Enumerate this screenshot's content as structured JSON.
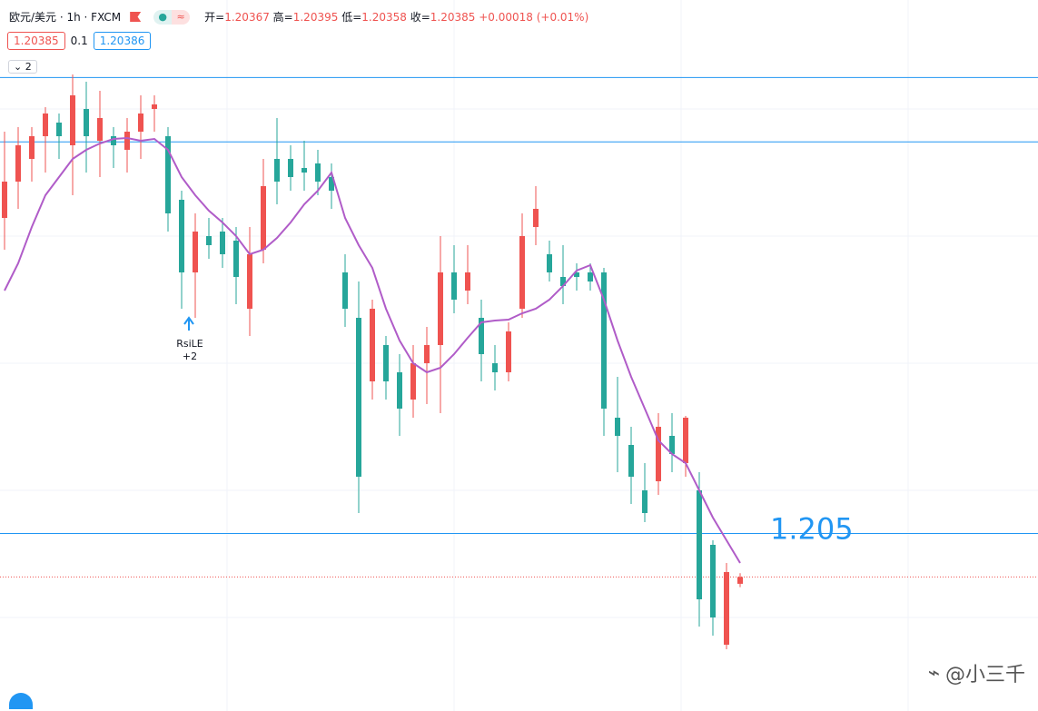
{
  "header": {
    "symbol": "欧元/美元 · 1h · FXCM",
    "ohlc": [
      {
        "label": "开=",
        "value": "1.20367"
      },
      {
        "label": "高=",
        "value": "1.20395"
      },
      {
        "label": "低=",
        "value": "1.20358"
      },
      {
        "label": "收=",
        "value": "1.20385"
      }
    ],
    "change": "+0.00018 (+0.01%)",
    "sell": "1.20385",
    "spread": "0.1",
    "buy": "1.20386",
    "panes": "2"
  },
  "chart_data": {
    "type": "candlestick",
    "ylim": [
      1.200308,
      1.2191
    ],
    "up_color": "#ef5350",
    "down_color": "#26a69a",
    "candles": [
      {
        "o": 1.21334,
        "h": 1.21562,
        "l": 1.2125,
        "c": 1.2143
      },
      {
        "o": 1.2143,
        "h": 1.21574,
        "l": 1.21358,
        "c": 1.21526
      },
      {
        "o": 1.2149,
        "h": 1.21574,
        "l": 1.2143,
        "c": 1.2155
      },
      {
        "o": 1.2155,
        "h": 1.216268,
        "l": 1.21454,
        "c": 1.2161
      },
      {
        "o": 1.21586,
        "h": 1.2161,
        "l": 1.2149,
        "c": 1.2155
      },
      {
        "o": 1.21526,
        "h": 1.217132,
        "l": 1.21394,
        "c": 1.21658
      },
      {
        "o": 1.21622,
        "h": 1.21694,
        "l": 1.21454,
        "c": 1.2155
      },
      {
        "o": 1.21538,
        "h": 1.2167,
        "l": 1.21442,
        "c": 1.21598
      },
      {
        "o": 1.2155,
        "h": 1.21574,
        "l": 1.21466,
        "c": 1.21526
      },
      {
        "o": 1.21514,
        "h": 1.21598,
        "l": 1.21454,
        "c": 1.21562
      },
      {
        "o": 1.21562,
        "h": 1.21658,
        "l": 1.2149,
        "c": 1.2161
      },
      {
        "o": 1.21622,
        "h": 1.21658,
        "l": 1.21562,
        "c": 1.21634
      },
      {
        "o": 1.2155,
        "h": 1.21574,
        "l": 1.21298,
        "c": 1.21346
      },
      {
        "o": 1.21382,
        "h": 1.21406,
        "l": 1.21094,
        "c": 1.2119
      },
      {
        "o": 1.2119,
        "h": 1.21346,
        "l": 1.2107,
        "c": 1.21298
      },
      {
        "o": 1.21286,
        "h": 1.21334,
        "l": 1.21226,
        "c": 1.21262
      },
      {
        "o": 1.21298,
        "h": 1.21334,
        "l": 1.21202,
        "c": 1.21238
      },
      {
        "o": 1.21274,
        "h": 1.2131,
        "l": 1.21106,
        "c": 1.21178
      },
      {
        "o": 1.21094,
        "h": 1.2131,
        "l": 1.21022,
        "c": 1.21238
      },
      {
        "o": 1.2125,
        "h": 1.2149,
        "l": 1.21214,
        "c": 1.21418
      },
      {
        "o": 1.2149,
        "h": 1.21598,
        "l": 1.2137,
        "c": 1.2143
      },
      {
        "o": 1.2149,
        "h": 1.21526,
        "l": 1.21406,
        "c": 1.21442
      },
      {
        "o": 1.21466,
        "h": 1.21538,
        "l": 1.21406,
        "c": 1.21454
      },
      {
        "o": 1.21478,
        "h": 1.21514,
        "l": 1.21394,
        "c": 1.2143
      },
      {
        "o": 1.21442,
        "h": 1.21478,
        "l": 1.21358,
        "c": 1.21406
      },
      {
        "o": 1.2119,
        "h": 1.21238,
        "l": 1.21046,
        "c": 1.21094
      },
      {
        "o": 1.2107,
        "h": 1.21166,
        "l": 1.20554,
        "c": 1.2065
      },
      {
        "o": 1.20902,
        "h": 1.21118,
        "l": 1.20854,
        "c": 1.21094
      },
      {
        "o": 1.20998,
        "h": 1.21022,
        "l": 1.20854,
        "c": 1.20902
      },
      {
        "o": 1.20926,
        "h": 1.20974,
        "l": 1.20758,
        "c": 1.2083
      },
      {
        "o": 1.20854,
        "h": 1.20998,
        "l": 1.20806,
        "c": 1.2095
      },
      {
        "o": 1.2095,
        "h": 1.21046,
        "l": 1.20842,
        "c": 1.20998
      },
      {
        "o": 1.20998,
        "h": 1.21286,
        "l": 1.20818,
        "c": 1.2119
      },
      {
        "o": 1.2119,
        "h": 1.21262,
        "l": 1.21082,
        "c": 1.21118
      },
      {
        "o": 1.21142,
        "h": 1.21262,
        "l": 1.21106,
        "c": 1.2119
      },
      {
        "o": 1.2107,
        "h": 1.21118,
        "l": 1.20902,
        "c": 1.20974
      },
      {
        "o": 1.2095,
        "h": 1.20998,
        "l": 1.20878,
        "c": 1.20926
      },
      {
        "o": 1.20926,
        "h": 1.21058,
        "l": 1.20902,
        "c": 1.21034
      },
      {
        "o": 1.21094,
        "h": 1.21346,
        "l": 1.2107,
        "c": 1.21286
      },
      {
        "o": 1.2131,
        "h": 1.21418,
        "l": 1.21262,
        "c": 1.21358
      },
      {
        "o": 1.21238,
        "h": 1.21274,
        "l": 1.21166,
        "c": 1.2119
      },
      {
        "o": 1.21178,
        "h": 1.21262,
        "l": 1.21106,
        "c": 1.21154
      },
      {
        "o": 1.2119,
        "h": 1.21214,
        "l": 1.21142,
        "c": 1.21178
      },
      {
        "o": 1.2119,
        "h": 1.21214,
        "l": 1.21142,
        "c": 1.21166
      },
      {
        "o": 1.2119,
        "h": 1.21202,
        "l": 1.20758,
        "c": 1.2083
      },
      {
        "o": 1.20806,
        "h": 1.20914,
        "l": 1.20662,
        "c": 1.20758
      },
      {
        "o": 1.20734,
        "h": 1.20782,
        "l": 1.20578,
        "c": 1.2065
      },
      {
        "o": 1.20614,
        "h": 1.20686,
        "l": 1.2053,
        "c": 1.20554
      },
      {
        "o": 1.20638,
        "h": 1.20818,
        "l": 1.20602,
        "c": 1.20782
      },
      {
        "o": 1.20758,
        "h": 1.20818,
        "l": 1.20662,
        "c": 1.2071
      },
      {
        "o": 1.20686,
        "h": 1.208108,
        "l": 1.2065,
        "c": 1.20806
      },
      {
        "o": 1.20614,
        "h": 1.20662,
        "l": 1.20254,
        "c": 1.20326
      },
      {
        "o": 1.2047,
        "h": 1.20482,
        "l": 1.2023,
        "c": 1.20278
      },
      {
        "o": 1.20206,
        "h": 1.20422,
        "l": 1.20194,
        "c": 1.20398
      },
      {
        "o": 1.20367,
        "h": 1.20395,
        "l": 1.20358,
        "c": 1.20385
      }
    ],
    "ma": {
      "color": "#b05cc8",
      "values": [
        1.21142,
        1.21214,
        1.2131,
        1.21394,
        1.21442,
        1.2149,
        1.21514,
        1.215308,
        1.215428,
        1.215452,
        1.21538,
        1.215428,
        1.21514,
        1.21442,
        1.21394,
        1.213532,
        1.21322,
        1.21286,
        1.21238,
        1.2125,
        1.212812,
        1.21322,
        1.2137,
        1.21406,
        1.21454,
        1.21334,
        1.21262,
        1.21202,
        1.21094,
        1.2101,
        1.2095,
        1.20926,
        1.20938,
        1.20974,
        1.210172,
        1.21058,
        1.210628,
        1.210652,
        1.21082,
        1.21094,
        1.21118,
        1.21154,
        1.211948,
        1.212092,
        1.21118,
        1.2101,
        1.20914,
        1.2083,
        1.20746,
        1.2071,
        1.20686,
        1.20614,
        1.20542,
        1.20482,
        1.20422
      ]
    },
    "hlines": {
      "color": "#2196f3",
      "values": [
        1.21705,
        1.21535,
        1.205
      ]
    },
    "last_price": {
      "value": 1.20385,
      "color": "#ef5350"
    },
    "signal": {
      "label": "RsiLE",
      "qty": "+2"
    }
  },
  "watermark": "@小三千"
}
